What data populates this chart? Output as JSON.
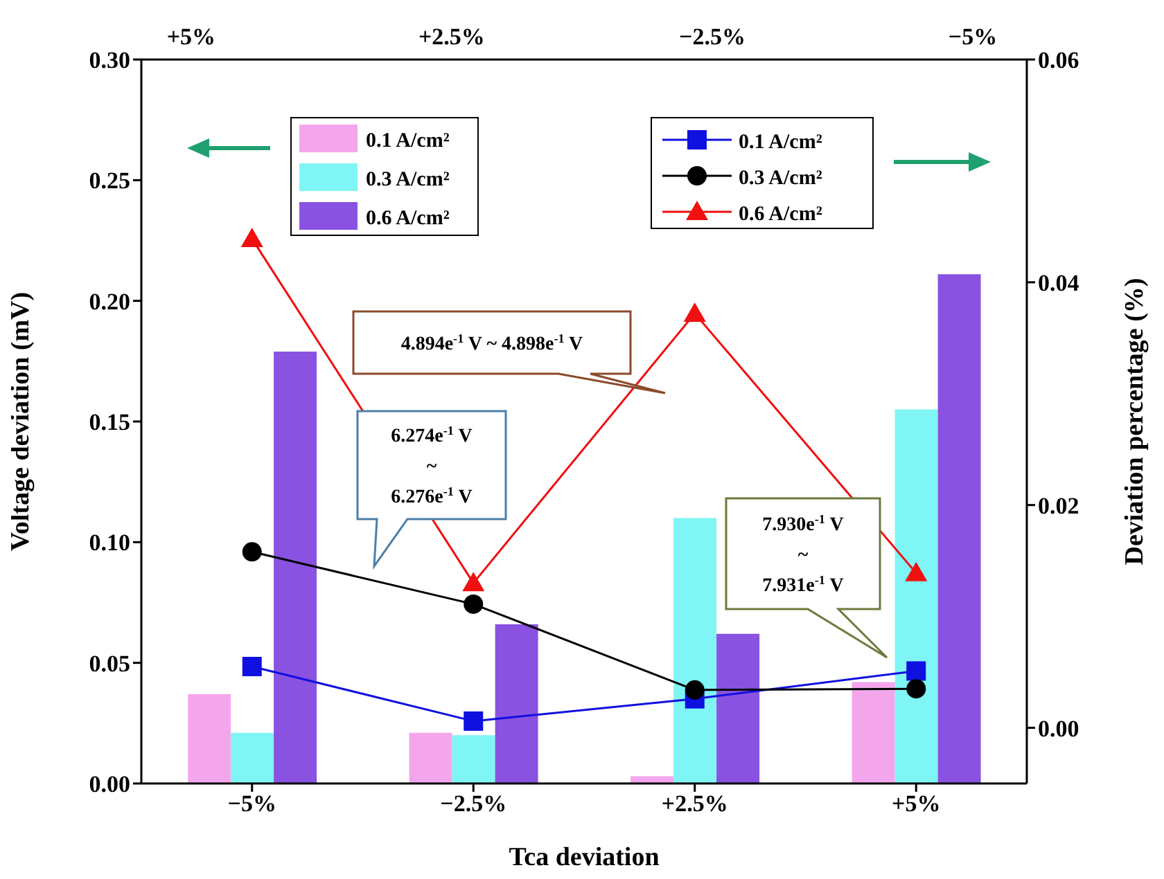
{
  "chart_data": {
    "type": "bar",
    "categories": [
      "−5%",
      "−2.5%",
      "+2.5%",
      "+5%"
    ],
    "xlabel": "Tca deviation",
    "ylabel": "Voltage deviation (mV)",
    "y2label": "Deviation percentage (%)",
    "ylim": [
      0,
      0.3
    ],
    "yticks": [
      {
        "value": 0,
        "label": "0.00"
      },
      {
        "value": 0.05,
        "label": "0.05"
      },
      {
        "value": 0.1,
        "label": "0.10"
      },
      {
        "value": 0.15,
        "label": "0.15"
      },
      {
        "value": 0.2,
        "label": "0.20"
      },
      {
        "value": 0.25,
        "label": "0.25"
      },
      {
        "value": 0.3,
        "label": "0.30"
      }
    ],
    "y2lim": [
      -0.005,
      0.06
    ],
    "y2ticks": [
      {
        "value": 0,
        "label": "0.00"
      },
      {
        "value": 0.02,
        "label": "0.02"
      },
      {
        "value": 0.04,
        "label": "0.04"
      },
      {
        "value": 0.06,
        "label": "0.06"
      }
    ],
    "legend": "top",
    "series": [
      {
        "name": "0.1 A/cm²",
        "color": "#f4a6ec",
        "values": [
          0.037,
          0.021,
          0.003,
          0.042
        ]
      },
      {
        "name": "0.3 A/cm²",
        "color": "#80f5f5",
        "values": [
          0.021,
          0.02,
          0.11,
          0.155
        ]
      },
      {
        "name": "0.6 A/cm²",
        "color": "#8a52e0",
        "values": [
          0.179,
          0.066,
          0.062,
          0.211
        ]
      },
      {
        "name": "0.1 A/cm²",
        "type": "line",
        "axis": "y2",
        "marker": "square",
        "color": "#1010e0",
        "values": [
          0.0055,
          0.0006,
          0.0026,
          0.0051
        ]
      },
      {
        "name": "0.3 A/cm²",
        "type": "line",
        "axis": "y2",
        "marker": "circle",
        "color": "#000000",
        "values": [
          0.0158,
          0.0111,
          0.0034,
          0.0035
        ]
      },
      {
        "name": "0.6 A/cm²",
        "type": "line",
        "axis": "y2",
        "marker": "triangle",
        "color": "#f01010",
        "values": [
          0.0439,
          0.013,
          0.0372,
          0.0139
        ]
      }
    ],
    "annotations": [
      "4.894e$^{-1}$ V ~ 4.898e$^{-1}$ V",
      "6.274e$^{-1}$ V\n~\n6.276e$^{-1}$ V",
      "7.930e$^{-1}$ V\n~\n7.931e$^{-1}$ V",
      "+5%",
      "+2.5%",
      "−2.5%",
      "−5%"
    ]
  }
}
